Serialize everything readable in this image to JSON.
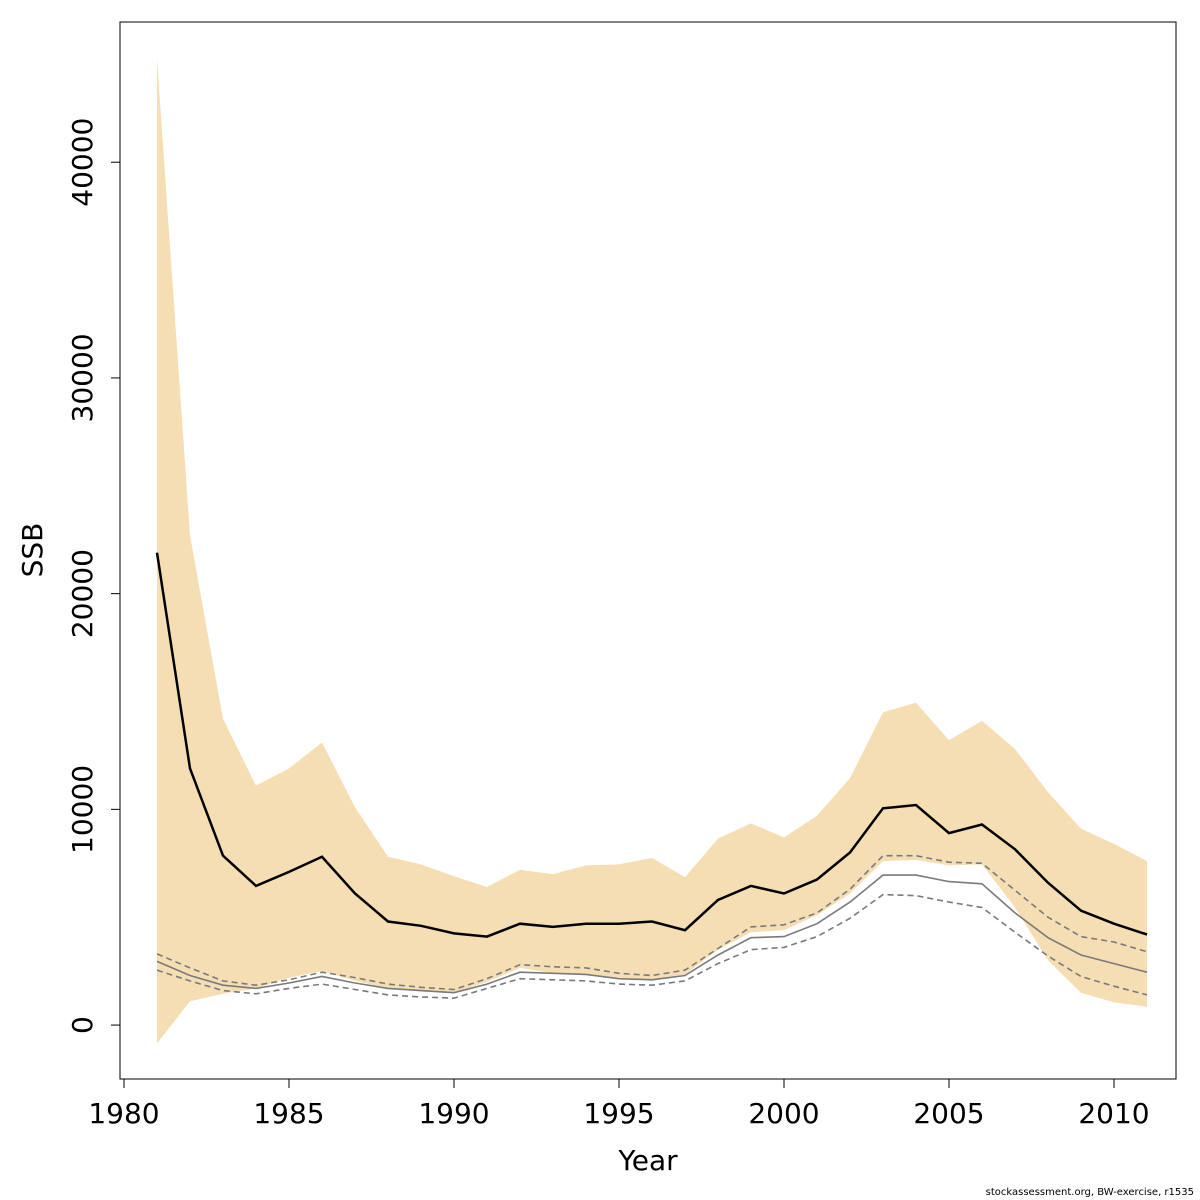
{
  "chart_data": {
    "type": "line",
    "xlabel": "Year",
    "ylabel": "SSB",
    "xlim": [
      1980,
      2012
    ],
    "ylim": [
      -2500,
      46500
    ],
    "x_ticks": [
      1980,
      1985,
      1990,
      1995,
      2000,
      2005,
      2010
    ],
    "y_ticks": [
      0,
      10000,
      20000,
      30000,
      40000
    ],
    "grid": false,
    "x": [
      1981,
      1982,
      1983,
      1984,
      1985,
      1986,
      1987,
      1988,
      1989,
      1990,
      1991,
      1992,
      1993,
      1994,
      1995,
      1996,
      1997,
      1998,
      1999,
      2000,
      2001,
      2002,
      2003,
      2004,
      2005,
      2006,
      2007,
      2008,
      2009,
      2010,
      2011
    ],
    "band": {
      "color": "#f5deb3",
      "upper": [
        44800,
        22700,
        14200,
        11100,
        11900,
        13100,
        10100,
        7800,
        7450,
        6900,
        6400,
        7200,
        7000,
        7400,
        7450,
        7750,
        6850,
        8650,
        9350,
        8700,
        9700,
        11450,
        14500,
        14950,
        13200,
        14100,
        12800,
        10800,
        9100,
        8400,
        7600
      ],
      "lower": [
        -850,
        1100,
        1450,
        1700,
        2200,
        2500,
        2050,
        1700,
        1550,
        1500,
        2000,
        2650,
        2400,
        2350,
        2200,
        2100,
        2350,
        3500,
        4300,
        4400,
        5100,
        6100,
        7600,
        7650,
        7400,
        7450,
        5450,
        3000,
        1500,
        1050,
        850
      ]
    },
    "series": [
      {
        "style": "solid-black",
        "color": "#000000",
        "values": [
          21900,
          11900,
          7850,
          6450,
          7100,
          7800,
          6100,
          4800,
          4600,
          4250,
          4100,
          4700,
          4550,
          4700,
          4700,
          4800,
          4400,
          5800,
          6450,
          6100,
          6750,
          8000,
          10050,
          10200,
          8900,
          9300,
          8150,
          6600,
          5300,
          4700,
          4200
        ]
      },
      {
        "style": "solid-grey",
        "color": "#7a7a7a",
        "values": [
          2950,
          2300,
          1850,
          1700,
          1950,
          2250,
          1950,
          1700,
          1600,
          1500,
          1900,
          2450,
          2400,
          2350,
          2150,
          2100,
          2300,
          3250,
          4050,
          4100,
          4700,
          5700,
          6950,
          6950,
          6650,
          6550,
          5200,
          4050,
          3250,
          2850,
          2450
        ]
      },
      {
        "style": "dashed-upper",
        "color": "#7a7a7a",
        "values": [
          3300,
          2650,
          2050,
          1850,
          2100,
          2450,
          2200,
          1900,
          1750,
          1650,
          2150,
          2800,
          2700,
          2650,
          2400,
          2300,
          2550,
          3550,
          4550,
          4650,
          5200,
          6300,
          7850,
          7850,
          7550,
          7500,
          6250,
          5000,
          4100,
          3850,
          3400
        ]
      },
      {
        "style": "dashed-lower",
        "color": "#7a7a7a",
        "values": [
          2550,
          2050,
          1600,
          1450,
          1700,
          1900,
          1650,
          1400,
          1300,
          1250,
          1700,
          2150,
          2100,
          2050,
          1900,
          1850,
          2050,
          2850,
          3500,
          3600,
          4100,
          4950,
          6050,
          6000,
          5700,
          5450,
          4300,
          3200,
          2250,
          1800,
          1400
        ]
      }
    ]
  },
  "credit": "stockassessment.org, BW-exercise, r1535"
}
